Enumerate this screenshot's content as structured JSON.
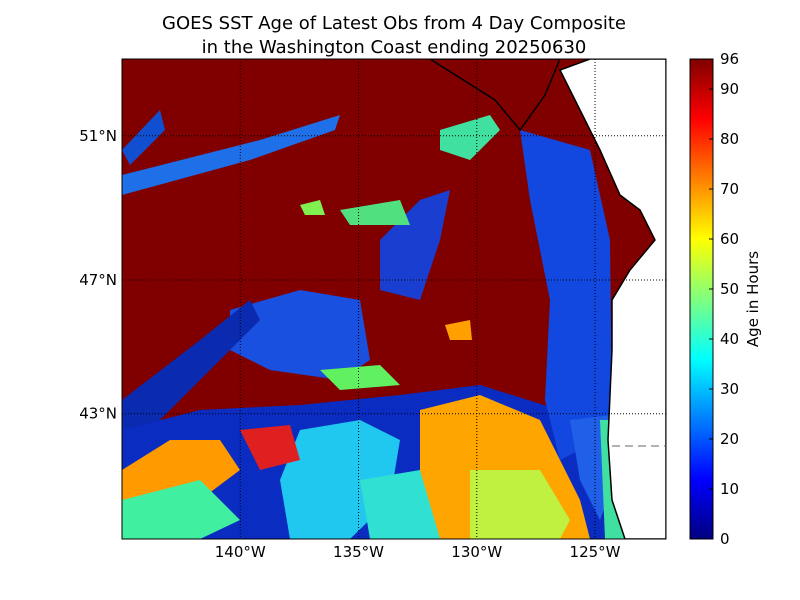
{
  "map": {
    "title_lines": [
      "GOES SST Age of Latest Obs from 4 Day Composite",
      "in the Washington Coast ending 20250630"
    ],
    "lon_range": [
      -145,
      -122
    ],
    "lat_range": [
      39,
      53
    ],
    "lon_ticks": [
      {
        "value": -140,
        "label": "140°W"
      },
      {
        "value": -135,
        "label": "135°W"
      },
      {
        "value": -130,
        "label": "130°W"
      },
      {
        "value": -125,
        "label": "125°W"
      }
    ],
    "lat_ticks": [
      {
        "value": 51,
        "label": "51°N"
      },
      {
        "value": 47,
        "label": "47°N"
      },
      {
        "value": 43,
        "label": "43°N"
      }
    ],
    "colorbar": {
      "label": "Age in Hours",
      "range": [
        0,
        96
      ],
      "ticks": [
        0,
        10,
        20,
        30,
        40,
        50,
        60,
        70,
        80,
        90,
        96
      ]
    }
  }
}
